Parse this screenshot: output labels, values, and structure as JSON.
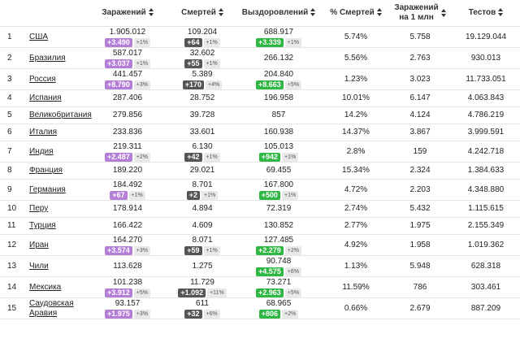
{
  "headers": {
    "rank": "",
    "country": "",
    "cases": "Заражений",
    "deaths": "Смертей",
    "recovered": "Выздоровлений",
    "death_pct": "% Смертей",
    "per_mil_1": "Заражений",
    "per_mil_2": "на 1 млн",
    "tests": "Тестов"
  },
  "rows": [
    {
      "rank": "1",
      "country": "США",
      "cases": "1.905.012",
      "cases_delta": "+3.490",
      "cases_pct": "+1%",
      "deaths": "109.204",
      "deaths_delta": "+64",
      "deaths_pct": "+1%",
      "recovered": "688.917",
      "rec_delta": "+3.339",
      "rec_pct": "+1%",
      "death_pct": "5.74%",
      "per_mil": "5.758",
      "tests": "19.129.044"
    },
    {
      "rank": "2",
      "country": "Бразилия",
      "cases": "587.017",
      "cases_delta": "+3.037",
      "cases_pct": "+1%",
      "deaths": "32.602",
      "deaths_delta": "+55",
      "deaths_pct": "+1%",
      "recovered": "266.132",
      "rec_delta": "",
      "rec_pct": "",
      "death_pct": "5.56%",
      "per_mil": "2.763",
      "tests": "930.013"
    },
    {
      "rank": "3",
      "country": "Россия",
      "cases": "441.457",
      "cases_delta": "+8.790",
      "cases_pct": "+3%",
      "deaths": "5.389",
      "deaths_delta": "+170",
      "deaths_pct": "+4%",
      "recovered": "204.840",
      "rec_delta": "+8.663",
      "rec_pct": "+5%",
      "death_pct": "1.23%",
      "per_mil": "3.023",
      "tests": "11.733.051"
    },
    {
      "rank": "4",
      "country": "Испания",
      "cases": "287.406",
      "cases_delta": "",
      "cases_pct": "",
      "deaths": "28.752",
      "deaths_delta": "",
      "deaths_pct": "",
      "recovered": "196.958",
      "rec_delta": "",
      "rec_pct": "",
      "death_pct": "10.01%",
      "per_mil": "6.147",
      "tests": "4.063.843"
    },
    {
      "rank": "5",
      "country": "Великобритания",
      "cases": "279.856",
      "cases_delta": "",
      "cases_pct": "",
      "deaths": "39.728",
      "deaths_delta": "",
      "deaths_pct": "",
      "recovered": "857",
      "rec_delta": "",
      "rec_pct": "",
      "death_pct": "14.2%",
      "per_mil": "4.124",
      "tests": "4.786.219"
    },
    {
      "rank": "6",
      "country": "Италия",
      "cases": "233.836",
      "cases_delta": "",
      "cases_pct": "",
      "deaths": "33.601",
      "deaths_delta": "",
      "deaths_pct": "",
      "recovered": "160.938",
      "rec_delta": "",
      "rec_pct": "",
      "death_pct": "14.37%",
      "per_mil": "3.867",
      "tests": "3.999.591"
    },
    {
      "rank": "7",
      "country": "Индия",
      "cases": "219.311",
      "cases_delta": "+2.487",
      "cases_pct": "+2%",
      "deaths": "6.130",
      "deaths_delta": "+42",
      "deaths_pct": "+1%",
      "recovered": "105.013",
      "rec_delta": "+942",
      "rec_pct": "+1%",
      "death_pct": "2.8%",
      "per_mil": "159",
      "tests": "4.242.718"
    },
    {
      "rank": "8",
      "country": "Франция",
      "cases": "189.220",
      "cases_delta": "",
      "cases_pct": "",
      "deaths": "29.021",
      "deaths_delta": "",
      "deaths_pct": "",
      "recovered": "69.455",
      "rec_delta": "",
      "rec_pct": "",
      "death_pct": "15.34%",
      "per_mil": "2.324",
      "tests": "1.384.633"
    },
    {
      "rank": "9",
      "country": "Германия",
      "cases": "184.492",
      "cases_delta": "+67",
      "cases_pct": "+1%",
      "deaths": "8.701",
      "deaths_delta": "+2",
      "deaths_pct": "+1%",
      "recovered": "167.800",
      "rec_delta": "+500",
      "rec_pct": "+1%",
      "death_pct": "4.72%",
      "per_mil": "2.203",
      "tests": "4.348.880"
    },
    {
      "rank": "10",
      "country": "Перу",
      "cases": "178.914",
      "cases_delta": "",
      "cases_pct": "",
      "deaths": "4.894",
      "deaths_delta": "",
      "deaths_pct": "",
      "recovered": "72.319",
      "rec_delta": "",
      "rec_pct": "",
      "death_pct": "2.74%",
      "per_mil": "5.432",
      "tests": "1.115.615"
    },
    {
      "rank": "11",
      "country": "Турция",
      "cases": "166.422",
      "cases_delta": "",
      "cases_pct": "",
      "deaths": "4.609",
      "deaths_delta": "",
      "deaths_pct": "",
      "recovered": "130.852",
      "rec_delta": "",
      "rec_pct": "",
      "death_pct": "2.77%",
      "per_mil": "1.975",
      "tests": "2.155.349"
    },
    {
      "rank": "12",
      "country": "Иран",
      "cases": "164.270",
      "cases_delta": "+3.574",
      "cases_pct": "+3%",
      "deaths": "8.071",
      "deaths_delta": "+59",
      "deaths_pct": "+1%",
      "recovered": "127.485",
      "rec_delta": "+2.279",
      "rec_pct": "+2%",
      "death_pct": "4.92%",
      "per_mil": "1.958",
      "tests": "1.019.362"
    },
    {
      "rank": "13",
      "country": "Чили",
      "cases": "113.628",
      "cases_delta": "",
      "cases_pct": "",
      "deaths": "1.275",
      "deaths_delta": "",
      "deaths_pct": "",
      "recovered": "90.748",
      "rec_delta": "+4.575",
      "rec_pct": "+6%",
      "death_pct": "1.13%",
      "per_mil": "5.948",
      "tests": "628.318"
    },
    {
      "rank": "14",
      "country": "Мексика",
      "cases": "101.238",
      "cases_delta": "+3.912",
      "cases_pct": "+5%",
      "deaths": "11.729",
      "deaths_delta": "+1.092",
      "deaths_pct": "+11%",
      "recovered": "73.271",
      "rec_delta": "+2.963",
      "rec_pct": "+5%",
      "death_pct": "11.59%",
      "per_mil": "786",
      "tests": "303.461"
    },
    {
      "rank": "15",
      "country": "Саудовская Аравия",
      "cases": "93.157",
      "cases_delta": "+1.975",
      "cases_pct": "+3%",
      "deaths": "611",
      "deaths_delta": "+32",
      "deaths_pct": "+6%",
      "recovered": "68.965",
      "rec_delta": "+806",
      "rec_pct": "+2%",
      "death_pct": "0.66%",
      "per_mil": "2.679",
      "tests": "887.209"
    }
  ],
  "colors": {
    "cases_delta": "#b57ed6",
    "deaths_delta": "#555555",
    "recovered_delta": "#2fb743"
  },
  "icons": {
    "sort": "sort-arrows-icon"
  }
}
